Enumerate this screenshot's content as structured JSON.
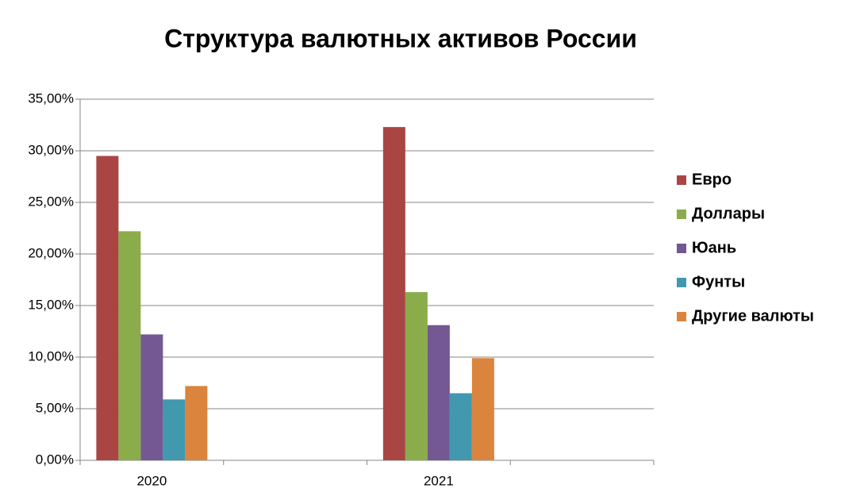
{
  "chart_data": {
    "type": "bar",
    "title": "Структура валютных активов России",
    "categories": [
      "2020",
      null,
      "2021",
      null
    ],
    "series": [
      {
        "name": "Евро",
        "color": "#a94643",
        "values": [
          29.5,
          null,
          32.3,
          null
        ]
      },
      {
        "name": "Доллары",
        "color": "#8bac4b",
        "values": [
          22.2,
          null,
          16.3,
          null
        ]
      },
      {
        "name": "Юань",
        "color": "#735893",
        "values": [
          12.2,
          null,
          13.1,
          null
        ]
      },
      {
        "name": "Фунты",
        "color": "#4198af",
        "values": [
          5.9,
          null,
          6.5,
          null
        ]
      },
      {
        "name": "Другие валюты",
        "color": "#db843d",
        "values": [
          7.2,
          null,
          9.9,
          null
        ]
      }
    ],
    "ylim": [
      0,
      35
    ],
    "yticks": [
      {
        "value": 0,
        "label": "0,00%"
      },
      {
        "value": 5,
        "label": "5,00%"
      },
      {
        "value": 10,
        "label": "10,00%"
      },
      {
        "value": 15,
        "label": "15,00%"
      },
      {
        "value": 20,
        "label": "20,00%"
      },
      {
        "value": 25,
        "label": "25,00%"
      },
      {
        "value": 30,
        "label": "30,00%"
      },
      {
        "value": 35,
        "label": "35,00%"
      }
    ],
    "grid": true,
    "legend": "right"
  }
}
